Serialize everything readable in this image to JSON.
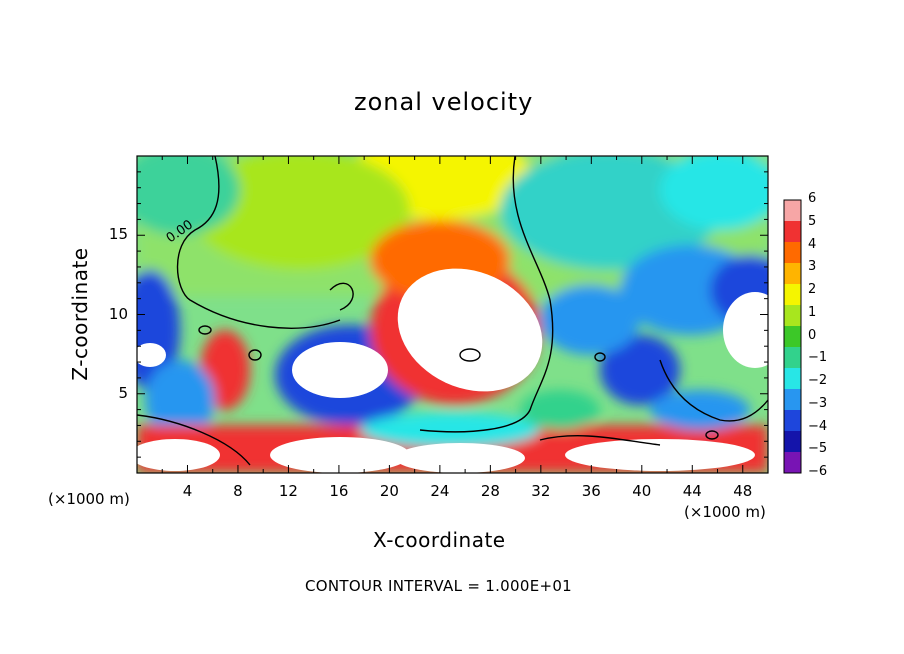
{
  "chart_data": {
    "type": "heatmap",
    "title": "zonal velocity",
    "xlabel": "X-coordinate",
    "ylabel": "Z-coordinate",
    "x_scale_note": "(×1000 m)",
    "y_scale_note": "(×1000 m)",
    "xlim": [
      0,
      50
    ],
    "ylim": [
      0,
      20
    ],
    "x_ticks": [
      4,
      8,
      12,
      16,
      20,
      24,
      28,
      32,
      36,
      40,
      44,
      48
    ],
    "y_ticks": [
      5,
      10,
      15
    ],
    "colorbar": {
      "levels": [
        6,
        5,
        4,
        3,
        2,
        1,
        0,
        -1,
        -2,
        -3,
        -4,
        -5,
        -6
      ],
      "colors": [
        "#f7a6a6",
        "#f03232",
        "#ff6a00",
        "#ffb400",
        "#f5f500",
        "#a8e61e",
        "#3cc828",
        "#32d28c",
        "#28e6e6",
        "#2896f0",
        "#1e46dc",
        "#1414aa",
        "#7814b4"
      ]
    },
    "contour_label": "0.00",
    "footer": "CONTOUR INTERVAL = 1.000E+01"
  }
}
